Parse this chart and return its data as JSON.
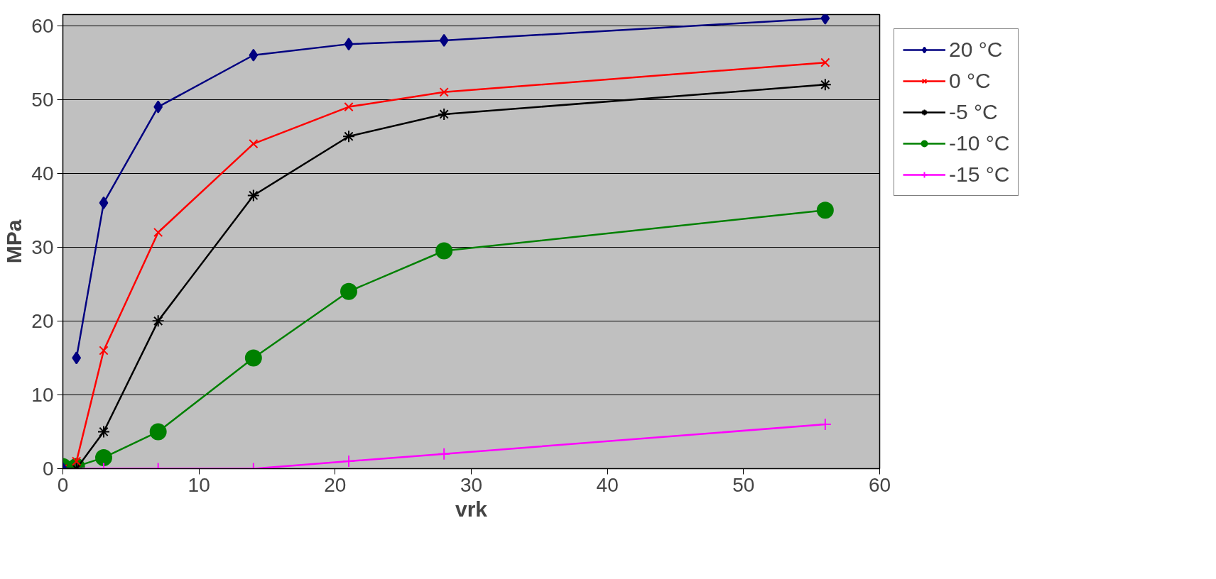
{
  "chart_data": {
    "type": "line",
    "xlabel": "vrk",
    "ylabel": "MPa",
    "x": [
      0,
      1,
      3,
      7,
      14,
      21,
      28,
      56
    ],
    "series": [
      {
        "name": "20 °C",
        "color": "#000080",
        "marker": "diamond",
        "values": [
          null,
          15,
          36,
          49,
          56,
          57.5,
          58,
          61
        ]
      },
      {
        "name": "0 °C",
        "color": "#ff0000",
        "marker": "cross",
        "values": [
          null,
          1,
          16,
          32,
          44,
          49,
          51,
          55
        ]
      },
      {
        "name": "-5 °C",
        "color": "#000000",
        "marker": "cross",
        "values": [
          0,
          0,
          5,
          20,
          37,
          45,
          48,
          52
        ]
      },
      {
        "name": "-10 °C",
        "color": "#008000",
        "marker": "circle",
        "values": [
          0.3,
          0.3,
          1.5,
          5,
          15,
          24,
          29.5,
          35
        ]
      },
      {
        "name": "-15 °C",
        "color": "#ff00ff",
        "marker": "plus",
        "values": [
          0,
          0,
          0,
          0,
          0,
          1,
          2,
          6
        ]
      }
    ],
    "xlim": [
      0,
      60
    ],
    "xticks": [
      0,
      10,
      20,
      30,
      40,
      50,
      60
    ],
    "ylim": [
      0,
      61.5
    ],
    "yticks": [
      0,
      10,
      20,
      30,
      40,
      50,
      60
    ],
    "grid": "y",
    "legend": "right",
    "line_style": "solid"
  }
}
